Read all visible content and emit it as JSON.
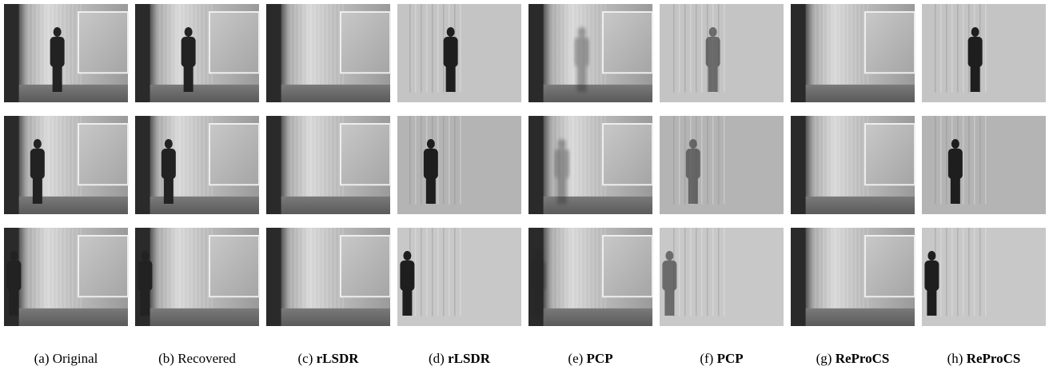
{
  "captions": [
    {
      "tag": "(a)",
      "text": "Original"
    },
    {
      "tag": "(b)",
      "text": "Recovered"
    },
    {
      "tag": "(c)",
      "text": "rLSDR"
    },
    {
      "tag": "(d)",
      "text": "rLSDR"
    },
    {
      "tag": "(e)",
      "text": "PCP"
    },
    {
      "tag": "(f)",
      "text": "PCP"
    },
    {
      "tag": "(g)",
      "text": "ReProCS"
    },
    {
      "tag": "(h)",
      "text": "ReProCS"
    }
  ]
}
